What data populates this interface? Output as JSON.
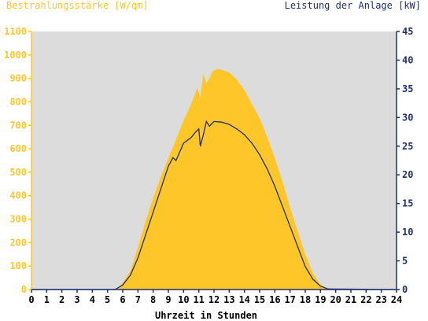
{
  "chart_data": {
    "type": "area",
    "left_axis_label": "Bestrahlungsstärke [W/qm]",
    "right_axis_label": "Leistung der Anlage [kW]",
    "xlabel": "Uhrzeit in Stunden",
    "xlim": [
      0,
      24
    ],
    "ylim_left": [
      0,
      1100
    ],
    "ylim_right": [
      0,
      45
    ],
    "x_ticks": [
      0,
      1,
      2,
      3,
      4,
      5,
      6,
      7,
      8,
      9,
      10,
      11,
      12,
      13,
      14,
      15,
      16,
      17,
      18,
      19,
      20,
      21,
      22,
      23,
      24
    ],
    "y_left_ticks": [
      0,
      100,
      200,
      300,
      400,
      500,
      600,
      700,
      800,
      900,
      1000,
      1100
    ],
    "y_right_ticks": [
      0,
      5,
      10,
      15,
      20,
      25,
      30,
      35,
      40,
      45
    ],
    "series": [
      {
        "axis": "left",
        "render": "area",
        "color": "#ffc629",
        "x": [
          0,
          5.6,
          6.0,
          6.5,
          7.0,
          7.5,
          8.0,
          8.5,
          9.0,
          9.5,
          10.0,
          10.5,
          10.9,
          11.1,
          11.3,
          11.5,
          11.7,
          11.9,
          12.0,
          12.3,
          12.6,
          13.0,
          13.5,
          14.0,
          14.5,
          15.0,
          15.5,
          16.0,
          16.5,
          17.0,
          17.5,
          18.0,
          18.5,
          19.0,
          19.5,
          20.0,
          24
        ],
        "values": [
          0,
          0,
          30,
          80,
          180,
          290,
          390,
          480,
          560,
          640,
          720,
          790,
          860,
          820,
          920,
          880,
          900,
          930,
          935,
          940,
          935,
          925,
          895,
          850,
          790,
          730,
          650,
          560,
          460,
          350,
          250,
          150,
          70,
          20,
          3,
          0,
          0
        ]
      },
      {
        "axis": "right",
        "render": "line",
        "color": "#1f2f6f",
        "x": [
          0,
          5.5,
          6.0,
          6.5,
          7.0,
          7.5,
          8.0,
          8.5,
          9.0,
          9.3,
          9.5,
          10.0,
          10.5,
          10.8,
          11.0,
          11.1,
          11.3,
          11.5,
          11.7,
          12.0,
          12.5,
          13.0,
          13.5,
          14.0,
          14.5,
          15.0,
          15.5,
          16.0,
          16.5,
          17.0,
          17.5,
          18.0,
          18.5,
          19.0,
          19.5,
          24
        ],
        "values": [
          0,
          0,
          0.8,
          2.5,
          5.5,
          9.5,
          13.5,
          17.5,
          21.5,
          23,
          22.5,
          25.5,
          26.5,
          27.5,
          28,
          25,
          27,
          29.3,
          28.5,
          29.3,
          29.2,
          28.8,
          28,
          27,
          25.5,
          23.5,
          21,
          18,
          14.5,
          11,
          7.5,
          4,
          1.8,
          0.6,
          0.1,
          0
        ]
      }
    ],
    "colors": {
      "plot_background": "#dcdcdc",
      "left_axis": "#ffc629",
      "right_axis": "#1f2f6f"
    }
  }
}
